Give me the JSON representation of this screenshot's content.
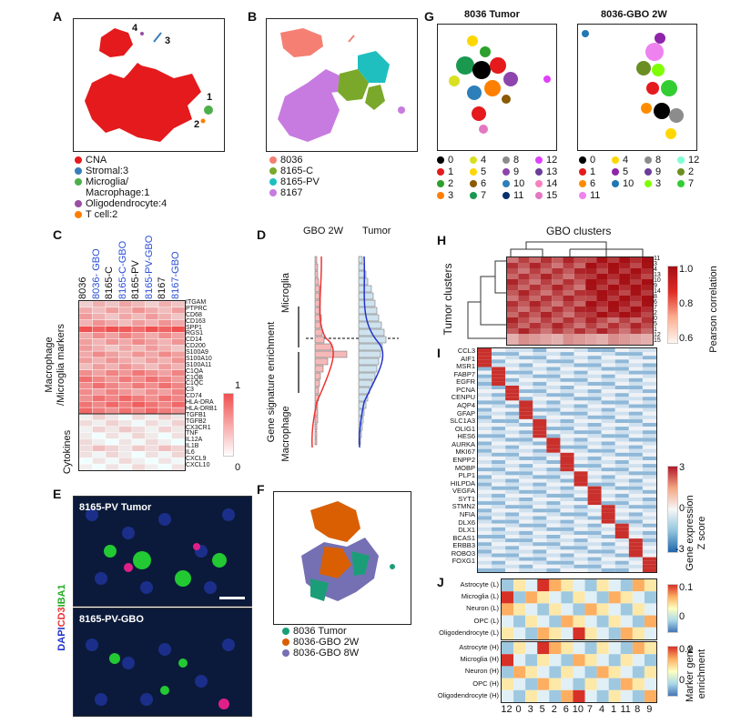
{
  "panels": {
    "A": "A",
    "B": "B",
    "C": "C",
    "D": "D",
    "E": "E",
    "F": "F",
    "G": "G",
    "H": "H",
    "I": "I",
    "J": "J"
  },
  "panelA": {
    "cluster_labels": [
      "4",
      "3",
      "1",
      "2"
    ],
    "legend": [
      {
        "label": "CNA",
        "color": "#e41a1c"
      },
      {
        "label": "Stromal:3",
        "color": "#377eb8"
      },
      {
        "label": "Microglia/",
        "color": "#4daf4a"
      },
      {
        "label": "Macrophage:1",
        "color": ""
      },
      {
        "label": "Oligodendrocyte:4",
        "color": "#984ea3"
      },
      {
        "label": "T cell:2",
        "color": "#ff7f00"
      }
    ]
  },
  "panelB": {
    "legend": [
      {
        "label": "8036",
        "color": "#f47f72"
      },
      {
        "label": "8165-C",
        "color": "#7aa82a"
      },
      {
        "label": "8165-PV",
        "color": "#1fbfbf"
      },
      {
        "label": "8167",
        "color": "#c77be0"
      }
    ]
  },
  "panelC": {
    "columns": [
      {
        "label": "8036",
        "blue": false
      },
      {
        "label": "8036- GBO",
        "blue": true
      },
      {
        "label": "8165-C",
        "blue": false
      },
      {
        "label": "8165-C-GBO",
        "blue": true
      },
      {
        "label": "8165-PV",
        "blue": false
      },
      {
        "label": "8165-PV-GBO",
        "blue": true
      },
      {
        "label": "8167",
        "blue": false
      },
      {
        "label": "8167-GBO",
        "blue": true
      }
    ],
    "rows_macro": [
      "ITGAM",
      "PTPRC",
      "CD68",
      "CD163",
      "SPP1",
      "RGS1",
      "CD14",
      "CD200",
      "S100A9",
      "S100A10",
      "S100A11",
      "C1QA",
      "C1QB",
      "C1QC",
      "C3",
      "CD74",
      "HLA-DRA",
      "HLA-DRB1"
    ],
    "rows_cyto": [
      "TGFB1",
      "TGFB2",
      "CX3CR1",
      "TNF",
      "IL12A",
      "IL1B",
      "IL6",
      "CXCL9",
      "CXCL10"
    ],
    "group_macro": "Macrophage\n/Microglia markers",
    "group_macro_1": "Macrophage",
    "group_macro_2": "/Microglia markers",
    "group_cyto": "Cytokines",
    "scale_max": "1",
    "scale_min": "0"
  },
  "panelD": {
    "col1": "GBO 2W",
    "col2": "Tumor",
    "ylabel": "Gene signature enrichment",
    "top": "Microglia",
    "bottom": "Macrophage"
  },
  "panelE": {
    "top_title": "8165-PV Tumor",
    "bottom_title": "8165-PV-GBO",
    "stain_dapi": "DAPI",
    "stain_cd3": "CD3",
    "stain_iba1": "IBA1"
  },
  "panelF": {
    "legend": [
      {
        "label": "8036 Tumor",
        "color": "#1b9e77"
      },
      {
        "label": "8036-GBO 2W",
        "color": "#d95f02"
      },
      {
        "label": "8036-GBO 8W",
        "color": "#7570b3"
      }
    ]
  },
  "panelG": {
    "title_left": "8036 Tumor",
    "title_right": "8036-GBO 2W",
    "legend_left": [
      {
        "label": "0",
        "color": "#000000"
      },
      {
        "label": "4",
        "color": "#d9e021"
      },
      {
        "label": "8",
        "color": "#8c8c8c"
      },
      {
        "label": "12",
        "color": "#e040fb"
      },
      {
        "label": "1",
        "color": "#e41a1c"
      },
      {
        "label": "5",
        "color": "#ffd700"
      },
      {
        "label": "9",
        "color": "#8e44ad"
      },
      {
        "label": "13",
        "color": "#6a3d9a"
      },
      {
        "label": "2",
        "color": "#2ca02c"
      },
      {
        "label": "6",
        "color": "#8b5a00"
      },
      {
        "label": "10",
        "color": "#2c7fb8"
      },
      {
        "label": "14",
        "color": "#f781bf"
      },
      {
        "label": "3",
        "color": "#ff7f00"
      },
      {
        "label": "7",
        "color": "#1a9850"
      },
      {
        "label": "11",
        "color": "#08306b"
      },
      {
        "label": "15",
        "color": "#e377c2"
      }
    ],
    "legend_right": [
      {
        "label": "0",
        "color": "#000000"
      },
      {
        "label": "4",
        "color": "#ffd700"
      },
      {
        "label": "8",
        "color": "#8c8c8c"
      },
      {
        "label": "12",
        "color": "#7fffd4"
      },
      {
        "label": "1",
        "color": "#e41a1c"
      },
      {
        "label": "5",
        "color": "#8e24aa"
      },
      {
        "label": "9",
        "color": "#6a3d9a"
      },
      {
        "label": "2",
        "color": "#6b8e23"
      },
      {
        "label": "6",
        "color": "#ff8c00"
      },
      {
        "label": "10",
        "color": "#1f77b4"
      },
      {
        "label": "3",
        "color": "#7fff00"
      },
      {
        "label": "7",
        "color": "#32cd32"
      },
      {
        "label": "11",
        "color": "#ee82ee"
      }
    ]
  },
  "panelH": {
    "title": "GBO clusters",
    "ylabel": "Tumor clusters",
    "scale_title": "Pearson correlation",
    "ticks": [
      "1.0",
      "0.8",
      "0.6"
    ],
    "row_labels": [
      "11",
      "3",
      "4",
      "13",
      "10",
      "9",
      "14",
      "8",
      "6",
      "7",
      "2",
      "0",
      "5",
      "1",
      "12",
      "15"
    ]
  },
  "panelI": {
    "genes": [
      "CCL3",
      "AIF1",
      "MSR1",
      "FABP7",
      "EGFR",
      "PCNA",
      "CENPU",
      "AQP4",
      "GFAP",
      "SLC1A3",
      "OLIG1",
      "HES6",
      "AURKA",
      "MKI67",
      "ENPP2",
      "MOBP",
      "PLP1",
      "HILPDA",
      "VEGFA",
      "SYT1",
      "STMN2",
      "NFIA",
      "DLX6",
      "DLX1",
      "BCAS1",
      "ERBB3",
      "ROBO3",
      "FOXG1"
    ],
    "scale_title": "Gene expression",
    "scale_sub": "Z score",
    "ticks": [
      "3",
      "0",
      "-3"
    ]
  },
  "panelJ": {
    "rows_L": [
      "Astrocyte (L)",
      "Microglia (L)",
      "Neuron (L)",
      "OPC (L)",
      "Oligodendrocyte (L)"
    ],
    "rows_H": [
      "Astrocyte (H)",
      "Microglia (H)",
      "Neuron (H)",
      "OPC (H)",
      "Oligodendrocyte (H)"
    ],
    "x_labels": [
      "12",
      "0",
      "3",
      "5",
      "2",
      "6",
      "10",
      "7",
      "4",
      "1",
      "11",
      "8",
      "9"
    ],
    "ticks_L": [
      "0.1",
      "0"
    ],
    "ticks_H": [
      "0.2",
      "0"
    ],
    "scale_title": "Marker gene",
    "scale_sub": "enrichment"
  }
}
